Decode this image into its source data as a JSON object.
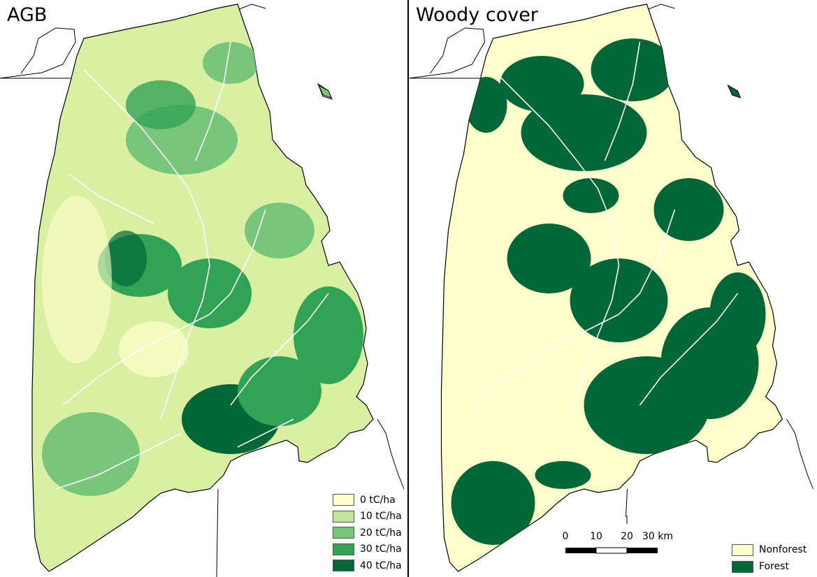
{
  "panels": [
    {
      "title": "AGB",
      "legend": [
        {
          "label": "0 tC/ha",
          "color": "#ffffcc"
        },
        {
          "label": "10 tC/ha",
          "color": "#c2e699"
        },
        {
          "label": "20 tC/ha",
          "color": "#78c679"
        },
        {
          "label": "30 tC/ha",
          "color": "#31a354"
        },
        {
          "label": "40 tC/ha",
          "color": "#006837"
        }
      ]
    },
    {
      "title": "Woody cover",
      "legend": [
        {
          "label": "Nonforest",
          "color": "#ffffcc"
        },
        {
          "label": "Forest",
          "color": "#006837"
        }
      ],
      "scalebar": {
        "ticks": [
          "0",
          "10",
          "20",
          "30 km"
        ]
      }
    }
  ]
}
